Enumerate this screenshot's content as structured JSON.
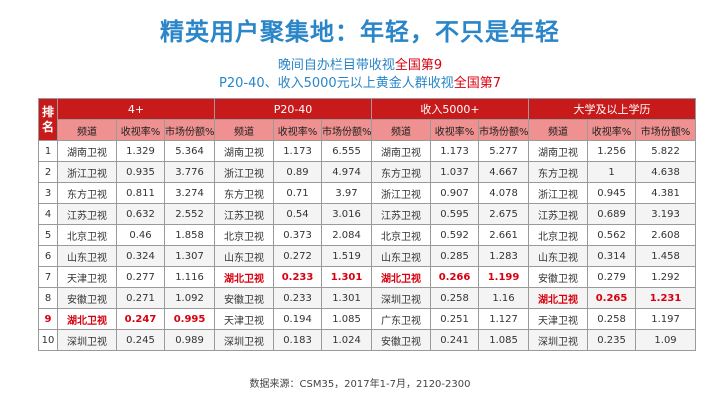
{
  "title": "精英用户聚集地：年轻，不只是年轻",
  "subtitle": {
    "line1_part1": "晚间自办栏目带收视",
    "line1_part2": "全国第9",
    "line2_part1": "P20-40、收入5000元以上黄金人群收视",
    "line2_part2": "全国第7"
  },
  "table": {
    "rank_header": "排名",
    "groups": [
      "4+",
      "P20-40",
      "收入5000+",
      "大学及以上学历"
    ],
    "sub_headers": [
      "频道",
      "收视率%",
      "市场份额%"
    ],
    "rows": [
      {
        "rank": "1",
        "cells": [
          [
            "湖南卫视",
            "1.329",
            "5.364"
          ],
          [
            "湖南卫视",
            "1.173",
            "6.555"
          ],
          [
            "湖南卫视",
            "1.173",
            "5.277"
          ],
          [
            "湖南卫视",
            "1.256",
            "5.822"
          ]
        ]
      },
      {
        "rank": "2",
        "cells": [
          [
            "浙江卫视",
            "0.935",
            "3.776"
          ],
          [
            "浙江卫视",
            "0.89",
            "4.974"
          ],
          [
            "东方卫视",
            "1.037",
            "4.667"
          ],
          [
            "东方卫视",
            "1",
            "4.638"
          ]
        ]
      },
      {
        "rank": "3",
        "cells": [
          [
            "东方卫视",
            "0.811",
            "3.274"
          ],
          [
            "东方卫视",
            "0.71",
            "3.97"
          ],
          [
            "浙江卫视",
            "0.907",
            "4.078"
          ],
          [
            "浙江卫视",
            "0.945",
            "4.381"
          ]
        ]
      },
      {
        "rank": "4",
        "cells": [
          [
            "江苏卫视",
            "0.632",
            "2.552"
          ],
          [
            "江苏卫视",
            "0.54",
            "3.016"
          ],
          [
            "江苏卫视",
            "0.595",
            "2.675"
          ],
          [
            "江苏卫视",
            "0.689",
            "3.193"
          ]
        ]
      },
      {
        "rank": "5",
        "cells": [
          [
            "北京卫视",
            "0.46",
            "1.858"
          ],
          [
            "北京卫视",
            "0.373",
            "2.084"
          ],
          [
            "北京卫视",
            "0.592",
            "2.661"
          ],
          [
            "北京卫视",
            "0.562",
            "2.608"
          ]
        ]
      },
      {
        "rank": "6",
        "cells": [
          [
            "山东卫视",
            "0.324",
            "1.307"
          ],
          [
            "山东卫视",
            "0.272",
            "1.519"
          ],
          [
            "山东卫视",
            "0.285",
            "1.283"
          ],
          [
            "山东卫视",
            "0.314",
            "1.458"
          ]
        ]
      },
      {
        "rank": "7",
        "cells": [
          [
            "天津卫视",
            "0.277",
            "1.116"
          ],
          [
            "湖北卫视",
            "0.233",
            "1.301"
          ],
          [
            "湖北卫视",
            "0.266",
            "1.199"
          ],
          [
            "安徽卫视",
            "0.279",
            "1.292"
          ]
        ]
      },
      {
        "rank": "8",
        "cells": [
          [
            "安徽卫视",
            "0.271",
            "1.092"
          ],
          [
            "安徽卫视",
            "0.233",
            "1.301"
          ],
          [
            "深圳卫视",
            "0.258",
            "1.16"
          ],
          [
            "湖北卫视",
            "0.265",
            "1.231"
          ]
        ]
      },
      {
        "rank": "9",
        "cells": [
          [
            "湖北卫视",
            "0.247",
            "0.995"
          ],
          [
            "天津卫视",
            "0.194",
            "1.085"
          ],
          [
            "广东卫视",
            "0.251",
            "1.127"
          ],
          [
            "天津卫视",
            "0.258",
            "1.197"
          ]
        ]
      },
      {
        "rank": "10",
        "cells": [
          [
            "深圳卫视",
            "0.245",
            "0.989"
          ],
          [
            "深圳卫视",
            "0.183",
            "1.024"
          ],
          [
            "安徽卫视",
            "0.241",
            "1.085"
          ],
          [
            "深圳卫视",
            "0.235",
            "1.09"
          ]
        ]
      }
    ],
    "highlight_channel": "湖北卫视",
    "highlight_rank": "9"
  },
  "source": "数据来源：CSM35，2017年1-7月，2120-2300",
  "colors": {
    "title": "#2a86c8",
    "highlight": "#d7000f",
    "header": "#c81a1a",
    "subheader": "#ef9191"
  }
}
